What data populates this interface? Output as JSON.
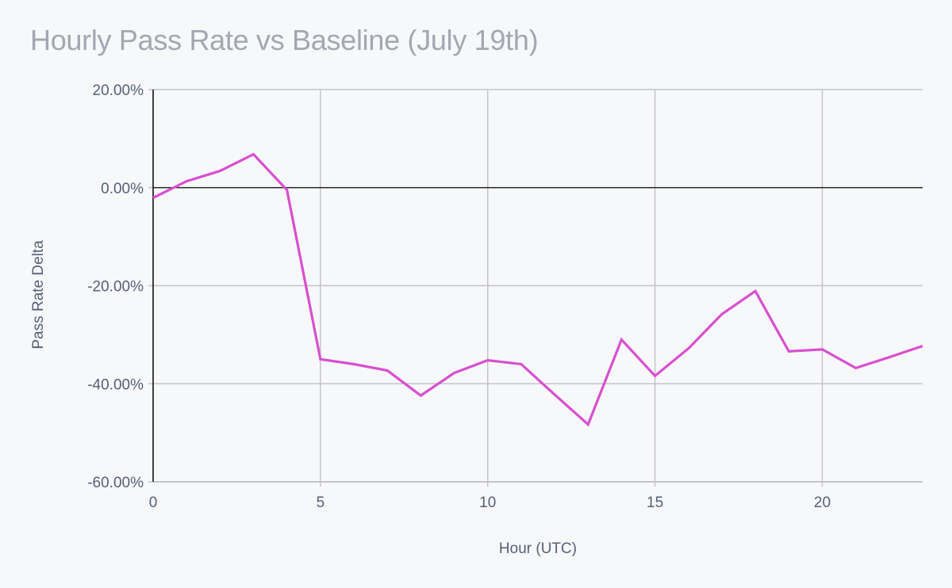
{
  "chart_data": {
    "type": "line",
    "title": "Hourly Pass Rate vs Baseline (July 19th)",
    "xlabel": "Hour (UTC)",
    "ylabel": "Pass Rate Delta",
    "xlim": [
      0,
      23
    ],
    "ylim": [
      -60,
      20
    ],
    "x_ticks": [
      0,
      5,
      10,
      15,
      20
    ],
    "y_ticks": [
      20,
      0,
      -20,
      -40,
      -60
    ],
    "y_tick_labels": [
      "20.00%",
      "0.00%",
      "-20.00%",
      "-40.00%",
      "-60.00%"
    ],
    "x_tick_labels": [
      "0",
      "5",
      "10",
      "15",
      "20"
    ],
    "grid": true,
    "legend": null,
    "x": [
      0,
      1,
      2,
      3,
      4,
      5,
      6,
      7,
      8,
      9,
      10,
      11,
      12,
      13,
      14,
      15,
      16,
      17,
      18,
      19,
      20,
      21,
      22,
      23
    ],
    "series": [
      {
        "name": "Pass Rate Delta",
        "color": "#d84fcf",
        "values": [
          -2.1,
          1.3,
          3.4,
          6.8,
          -0.5,
          -35.0,
          -36.0,
          -37.3,
          -42.4,
          -37.8,
          -35.2,
          -36.0,
          -42.2,
          -48.3,
          -31.0,
          -38.4,
          -32.8,
          -25.8,
          -21.1,
          -33.4,
          -33.0,
          -36.8,
          -34.6,
          -32.3
        ]
      }
    ]
  },
  "colors": {
    "background": "#f7f8fa",
    "title": "#a2a7b2",
    "labels": "#556077",
    "grid": "#c4c4c6",
    "axis": "#2b2b2b",
    "line": "#d84fcf"
  }
}
